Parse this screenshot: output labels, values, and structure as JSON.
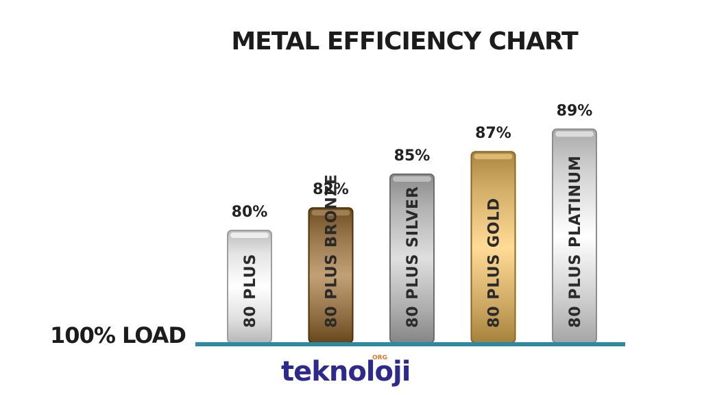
{
  "chart_data": {
    "type": "bar",
    "title": "METAL EFFICIENCY CHART",
    "ylabel": "100% LOAD",
    "categories": [
      "80 PLUS",
      "80 PLUS BRONZE",
      "80 PLUS SILVER",
      "80 PLUS GOLD",
      "80 PLUS PLATINUM"
    ],
    "values": [
      80,
      82,
      85,
      87,
      89
    ],
    "value_labels": [
      "80%",
      "82%",
      "85%",
      "87%",
      "89%"
    ],
    "colors": [
      "#d9d9d9",
      "#8a6a3e",
      "#a8a8a8",
      "#c9a45f",
      "#c8c8c8"
    ],
    "baseline_color": "#2a8aa6",
    "ylim": [
      70,
      90
    ]
  },
  "branding": {
    "logo_text": "teknoloji",
    "logo_superscript": "ORG"
  }
}
